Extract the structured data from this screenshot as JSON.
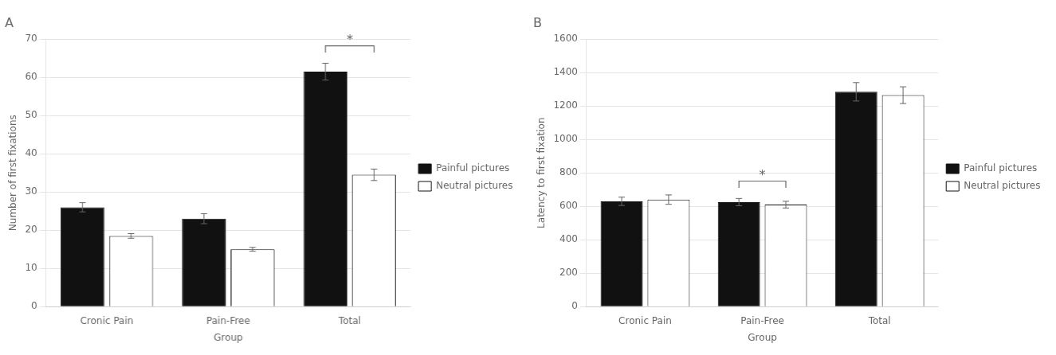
{
  "chart_data": [
    {
      "type": "bar",
      "title": "A",
      "xlabel": "Group",
      "ylabel": "Number of first fixations",
      "categories": [
        "Cronic Pain",
        "Pain-Free",
        "Total"
      ],
      "series": [
        {
          "name": "Painful pictures",
          "color": "#111111",
          "values": [
            26.0,
            23.0,
            61.5
          ],
          "errors": [
            1.2,
            1.3,
            2.2
          ]
        },
        {
          "name": "Neutral pictures",
          "color": "#ffffff",
          "values": [
            18.5,
            15.0,
            34.5
          ],
          "errors": [
            0.6,
            0.5,
            1.5
          ]
        }
      ],
      "ylim": [
        0,
        70
      ],
      "yticks": [
        0,
        10,
        20,
        30,
        40,
        50,
        60,
        70
      ],
      "grid": true,
      "legend": "right",
      "annotations": [
        {
          "text": "*",
          "category": "Total"
        }
      ]
    },
    {
      "type": "bar",
      "title": "B",
      "xlabel": "Group",
      "ylabel": "Latency to first fixation",
      "categories": [
        "Cronic Pain",
        "Pain-Free",
        "Total"
      ],
      "series": [
        {
          "name": "Painful pictures",
          "color": "#111111",
          "values": [
            630,
            625,
            1285
          ],
          "errors": [
            25,
            22,
            55
          ]
        },
        {
          "name": "Neutral pictures",
          "color": "#ffffff",
          "values": [
            640,
            610,
            1265
          ],
          "errors": [
            28,
            20,
            50
          ]
        }
      ],
      "ylim": [
        0,
        1600
      ],
      "yticks": [
        0,
        200,
        400,
        600,
        800,
        1000,
        1200,
        1400,
        1600
      ],
      "grid": true,
      "legend": "right",
      "annotations": [
        {
          "text": "*",
          "category": "Pain-Free"
        }
      ]
    }
  ]
}
